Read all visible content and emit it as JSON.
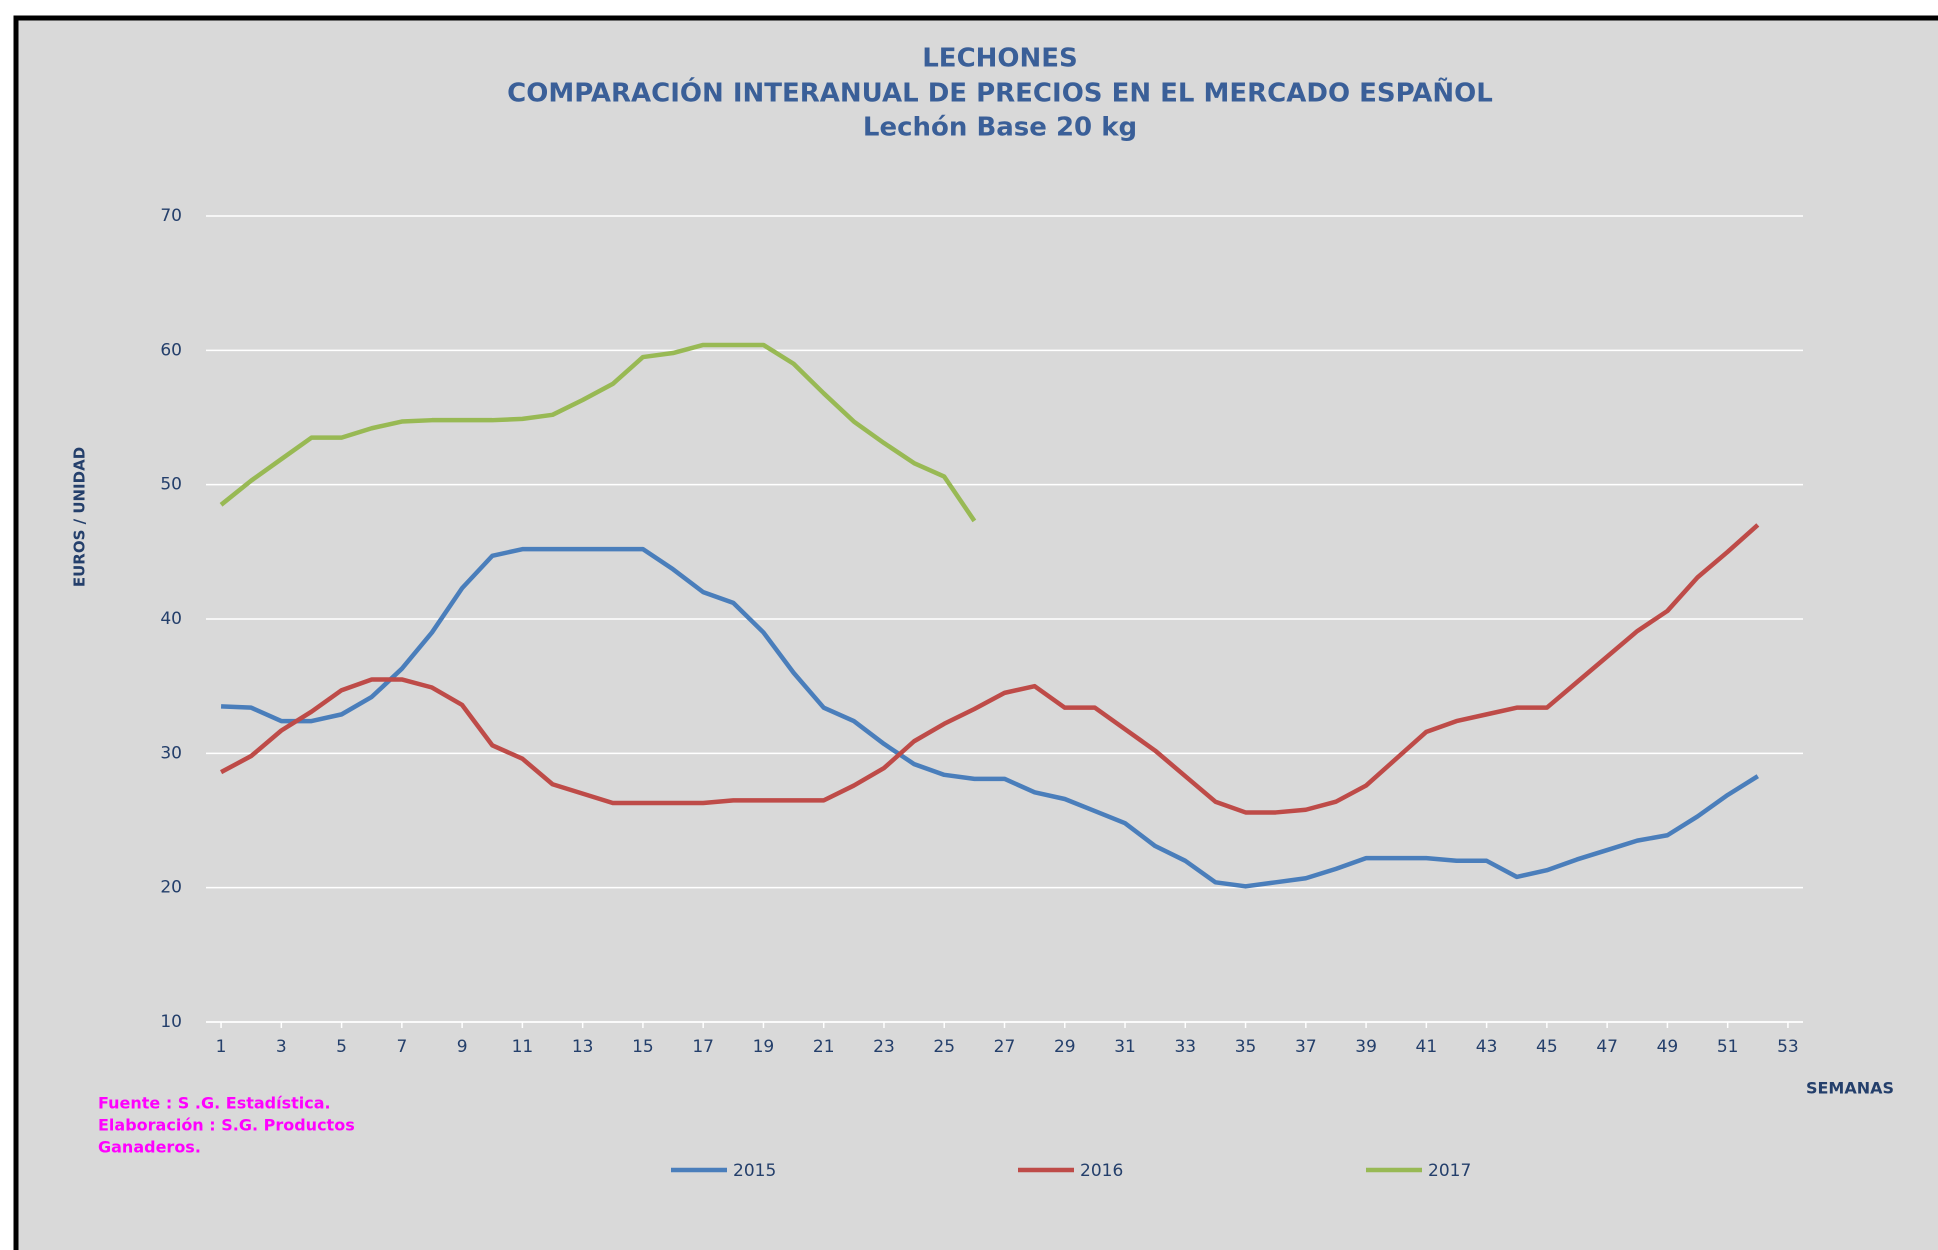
{
  "chart_data": {
    "type": "line",
    "title": [
      "LECHONES",
      "COMPARACIÓN INTERANUAL DE PRECIOS EN EL MERCADO ESPAÑOL",
      "Lechón Base 20 kg"
    ],
    "y_label": "EUROS / UNIDAD",
    "x_label": "SEMANAS",
    "source": [
      "Fuente :  S .G. Estadística.",
      "Elaboración : S.G. Productos",
      "Ganaderos."
    ],
    "xlim": [
      0.5,
      53.5
    ],
    "xticks": [
      1,
      3,
      5,
      7,
      9,
      11,
      13,
      15,
      17,
      19,
      21,
      23,
      25,
      27,
      29,
      31,
      33,
      35,
      37,
      39,
      41,
      43,
      45,
      47,
      49,
      51,
      53
    ],
    "ylim": [
      10,
      70
    ],
    "yticks": [
      10,
      20,
      30,
      40,
      50,
      60,
      70
    ],
    "grid": true,
    "legend": "bottom",
    "series": [
      {
        "name": "2015",
        "color": "#4a7ebb",
        "x": [
          1,
          2,
          3,
          4,
          5,
          6,
          7,
          8,
          9,
          10,
          11,
          12,
          13,
          14,
          15,
          16,
          17,
          18,
          19,
          20,
          21,
          22,
          23,
          24,
          25,
          26,
          27,
          28,
          29,
          30,
          31,
          32,
          33,
          34,
          35,
          36,
          37,
          38,
          39,
          40,
          41,
          42,
          43,
          44,
          45,
          46,
          47,
          48,
          49,
          50,
          51,
          52
        ],
        "values": [
          33.5,
          33.4,
          32.4,
          32.4,
          32.9,
          34.2,
          36.3,
          39,
          42.3,
          44.7,
          45.2,
          45.2,
          45.2,
          45.2,
          45.2,
          43.7,
          42,
          41.2,
          39,
          36,
          33.4,
          32.4,
          30.7,
          29.2,
          28.4,
          28.1,
          28.1,
          27.1,
          26.6,
          25.7,
          24.8,
          23.1,
          22,
          20.4,
          20.1,
          20.4,
          20.7,
          21.4,
          22.2,
          22.2,
          22.2,
          22,
          22,
          20.8,
          21.3,
          22.1,
          22.8,
          23.5,
          23.9,
          25.3,
          26.9,
          28.3
        ]
      },
      {
        "name": "2016",
        "color": "#be4b48",
        "x": [
          1,
          2,
          3,
          4,
          5,
          6,
          7,
          8,
          9,
          10,
          11,
          12,
          13,
          14,
          15,
          16,
          17,
          18,
          19,
          20,
          21,
          22,
          23,
          24,
          25,
          26,
          27,
          28,
          29,
          30,
          31,
          32,
          33,
          34,
          35,
          36,
          37,
          38,
          39,
          40,
          41,
          42,
          43,
          44,
          45,
          46,
          47,
          48,
          49,
          50,
          51,
          52
        ],
        "values": [
          28.6,
          29.8,
          31.7,
          33.1,
          34.7,
          35.5,
          35.5,
          34.9,
          33.6,
          30.6,
          29.6,
          27.7,
          27,
          26.3,
          26.3,
          26.3,
          26.3,
          26.5,
          26.5,
          26.5,
          26.5,
          27.6,
          28.9,
          30.9,
          32.2,
          33.3,
          34.5,
          35,
          33.4,
          33.4,
          31.8,
          30.2,
          28.3,
          26.4,
          25.6,
          25.6,
          25.8,
          26.4,
          27.6,
          29.6,
          31.6,
          32.4,
          32.9,
          33.4,
          33.4,
          35.3,
          37.2,
          39.1,
          40.6,
          43.1,
          45,
          47
        ]
      },
      {
        "name": "2017",
        "color": "#98b954",
        "x": [
          1,
          2,
          3,
          4,
          5,
          6,
          7,
          8,
          9,
          10,
          11,
          12,
          13,
          14,
          15,
          16,
          17,
          18,
          19,
          20,
          21,
          22,
          23,
          24,
          25,
          26
        ],
        "values": [
          48.5,
          50.3,
          51.9,
          53.5,
          53.5,
          54.2,
          54.7,
          54.8,
          54.8,
          54.8,
          54.9,
          55.2,
          56.3,
          57.5,
          59.5,
          59.8,
          60.4,
          60.4,
          60.4,
          59,
          56.8,
          54.7,
          53.1,
          51.6,
          50.6,
          47.3
        ]
      }
    ]
  }
}
